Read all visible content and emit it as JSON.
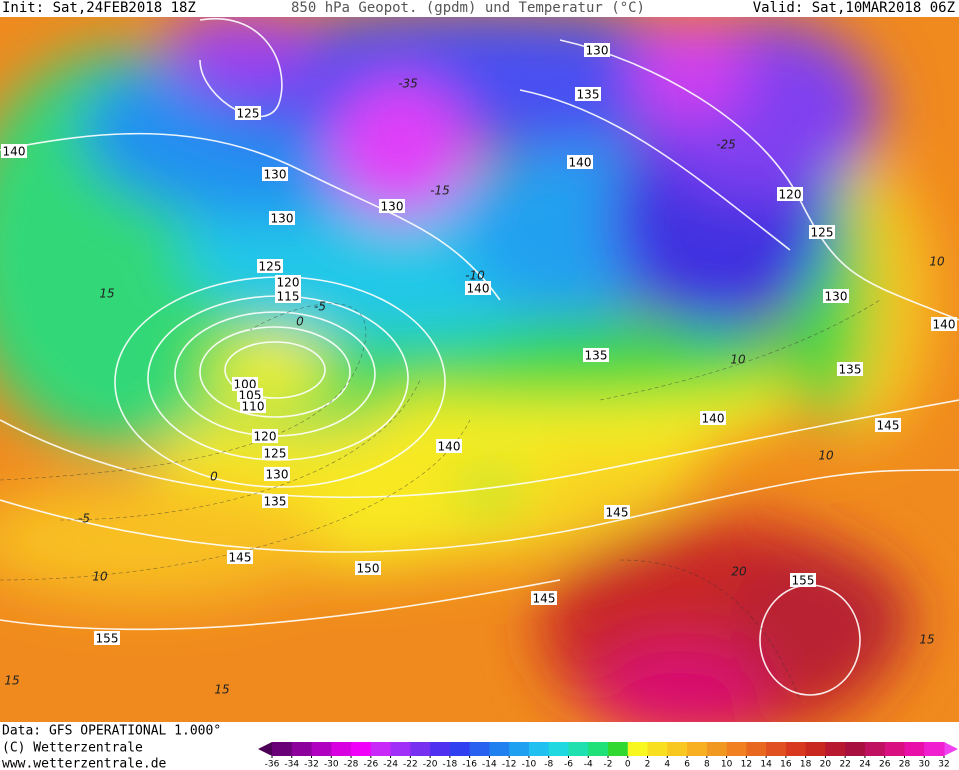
{
  "header": {
    "init": "Init: Sat,24FEB2018 18Z",
    "title": "850 hPa Geopot. (gpdm) und Temperatur (°C)",
    "valid": "Valid: Sat,10MAR2018 06Z"
  },
  "map": {
    "geopotential_labels": [
      "125",
      "130",
      "140",
      "130",
      "125",
      "120",
      "115",
      "100",
      "105",
      "110",
      "120",
      "125",
      "130",
      "135",
      "145",
      "150",
      "155",
      "130",
      "135",
      "140",
      "120",
      "125",
      "130",
      "140",
      "135",
      "135",
      "140",
      "145",
      "140",
      "145",
      "145",
      "155",
      "140",
      "130"
    ],
    "temperature_labels": [
      "-35",
      "-15",
      "-25",
      "-10",
      "15",
      "-5",
      "0",
      "0",
      "-5",
      "10",
      "15",
      "15",
      "20",
      "15",
      "10",
      "10",
      "10"
    ]
  },
  "footer": {
    "data": "Data: GFS OPERATIONAL 1.000°",
    "copyright": "(C) Wetterzentrale",
    "url": "www.wetterzentrale.de"
  },
  "legend": {
    "ticks": [
      -36,
      -34,
      -32,
      -30,
      -28,
      -26,
      -24,
      -22,
      -20,
      -18,
      -16,
      -14,
      -12,
      -10,
      -8,
      -6,
      -4,
      -2,
      0,
      2,
      4,
      6,
      8,
      10,
      12,
      14,
      16,
      18,
      20,
      22,
      24,
      26,
      28,
      30,
      32
    ],
    "colors": [
      "#4b0055",
      "#6a0078",
      "#8c009c",
      "#b000c0",
      "#d800e0",
      "#f000f8",
      "#c828f8",
      "#a030f8",
      "#7830f0",
      "#5030f0",
      "#3040f0",
      "#2860f0",
      "#2080f0",
      "#20a0f0",
      "#20c0f0",
      "#20d8e0",
      "#20e0b0",
      "#20e078",
      "#30d830",
      "#f8f820",
      "#f8e020",
      "#f8c820",
      "#f8b020",
      "#f09820",
      "#f08020",
      "#e86820",
      "#e05020",
      "#d83820",
      "#c82820",
      "#b81830",
      "#a81040",
      "#c01060",
      "#d81080",
      "#e810a8",
      "#f020d0",
      "#f040f0"
    ]
  }
}
